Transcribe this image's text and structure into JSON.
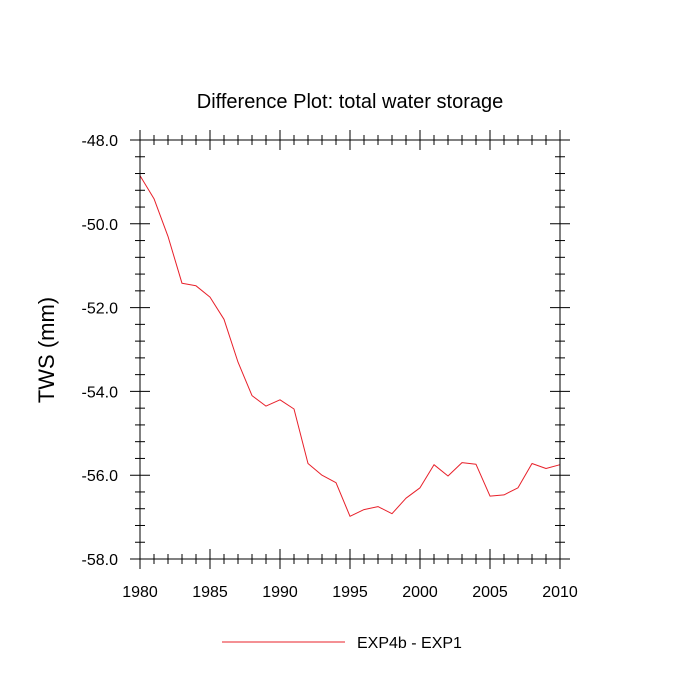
{
  "chart_data": {
    "type": "line",
    "title": "Difference Plot: total water storage",
    "xlabel": "",
    "ylabel": "TWS  (mm)",
    "xlim": [
      1980,
      2010
    ],
    "ylim": [
      -58.0,
      -48.0
    ],
    "x_ticks": [
      1980,
      1985,
      1990,
      1995,
      2000,
      2005,
      2010
    ],
    "x_tick_labels": [
      "1980",
      "1985",
      "1990",
      "1995",
      "2000",
      "2005",
      "2010"
    ],
    "y_ticks": [
      -48.0,
      -50.0,
      -52.0,
      -54.0,
      -56.0,
      -58.0
    ],
    "y_tick_labels": [
      "-48.0",
      "-50.0",
      "-52.0",
      "-54.0",
      "-56.0",
      "-58.0"
    ],
    "legend_position": "bottom-center",
    "series": [
      {
        "name": "EXP4b - EXP1",
        "color": "#e8202a",
        "x": [
          1980,
          1981,
          1982,
          1983,
          1984,
          1985,
          1986,
          1987,
          1988,
          1989,
          1990,
          1991,
          1992,
          1993,
          1994,
          1995,
          1996,
          1997,
          1998,
          1999,
          2000,
          2001,
          2002,
          2003,
          2004,
          2005,
          2006,
          2007,
          2008,
          2009,
          2010
        ],
        "values": [
          -48.85,
          -49.4,
          -50.3,
          -51.42,
          -51.48,
          -51.75,
          -52.28,
          -53.3,
          -54.1,
          -54.35,
          -54.2,
          -54.42,
          -55.72,
          -56.0,
          -56.18,
          -56.98,
          -56.82,
          -56.75,
          -56.92,
          -56.55,
          -56.3,
          -55.75,
          -56.02,
          -55.7,
          -55.74,
          -56.5,
          -56.47,
          -56.3,
          -55.72,
          -55.84,
          -55.75
        ]
      }
    ]
  }
}
